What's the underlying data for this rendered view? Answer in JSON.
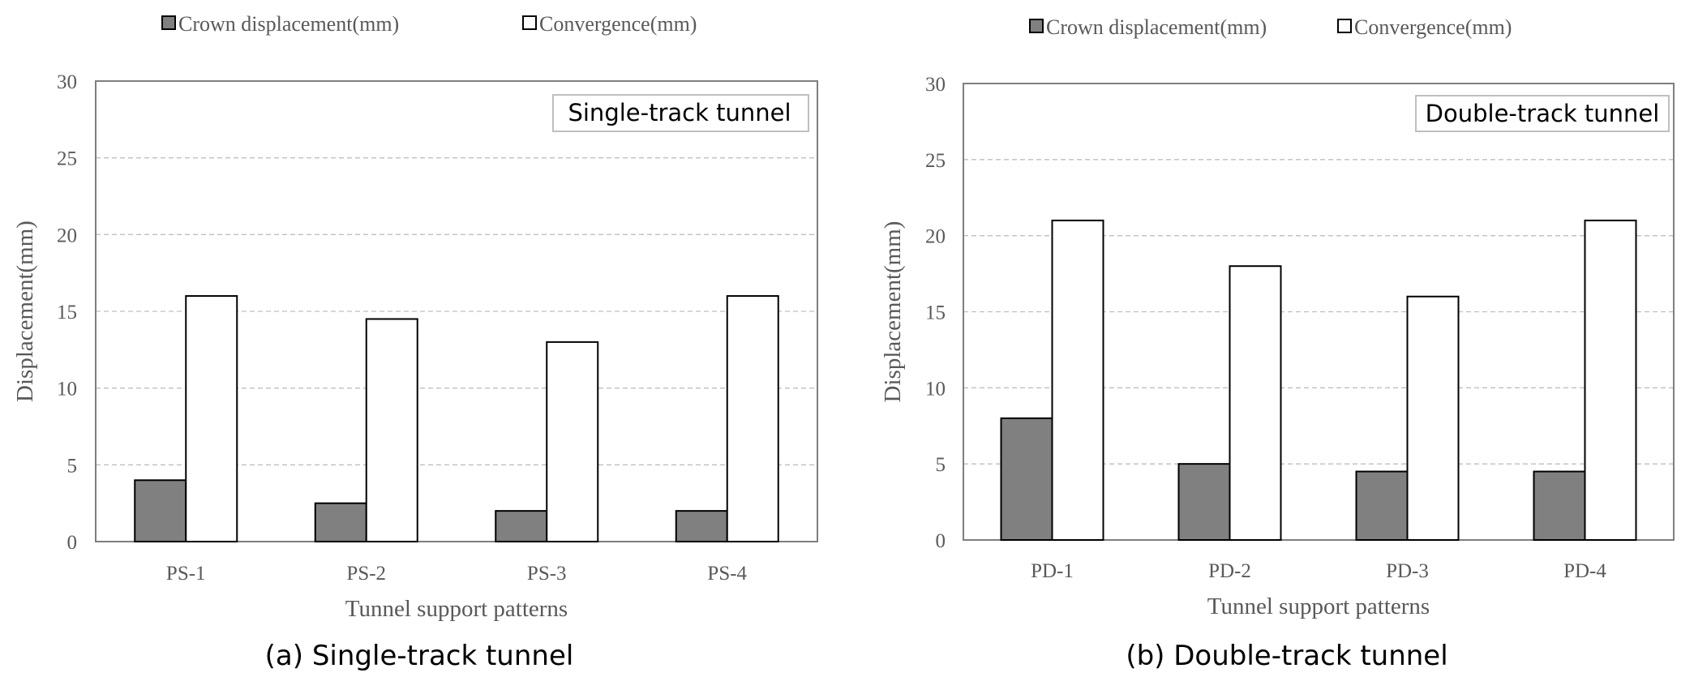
{
  "colors": {
    "crown": "#808080",
    "convergence": "#ffffff",
    "bar_stroke": "#000000",
    "axis": "#7f7f7f",
    "grid": "#bfbfbf",
    "text": "#595959"
  },
  "chart_data": [
    {
      "type": "bar",
      "inset_title": "Single-track tunnel",
      "caption": "(a) Single-track tunnel",
      "xlabel": "Tunnel support patterns",
      "ylabel": "Displacement(mm)",
      "ylim": [
        0,
        30
      ],
      "yticks": [
        0,
        5,
        10,
        15,
        20,
        25,
        30
      ],
      "grid": true,
      "legend_position": "top",
      "categories": [
        "PS-1",
        "PS-2",
        "PS-3",
        "PS-4"
      ],
      "series": [
        {
          "name": "Crown displacement(mm)",
          "values": [
            4,
            2.5,
            2,
            2
          ]
        },
        {
          "name": "Convergence(mm)",
          "values": [
            16,
            14.5,
            13,
            16
          ]
        }
      ]
    },
    {
      "type": "bar",
      "inset_title": "Double-track tunnel",
      "caption": "(b) Double-track tunnel",
      "xlabel": "Tunnel support patterns",
      "ylabel": "Displacement(mm)",
      "ylim": [
        0,
        30
      ],
      "yticks": [
        0,
        5,
        10,
        15,
        20,
        25,
        30
      ],
      "grid": true,
      "legend_position": "top",
      "categories": [
        "PD-1",
        "PD-2",
        "PD-3",
        "PD-4"
      ],
      "series": [
        {
          "name": "Crown displacement(mm)",
          "values": [
            8,
            5,
            4.5,
            4.5
          ]
        },
        {
          "name": "Convergence(mm)",
          "values": [
            21,
            18,
            16,
            21
          ]
        }
      ]
    }
  ]
}
